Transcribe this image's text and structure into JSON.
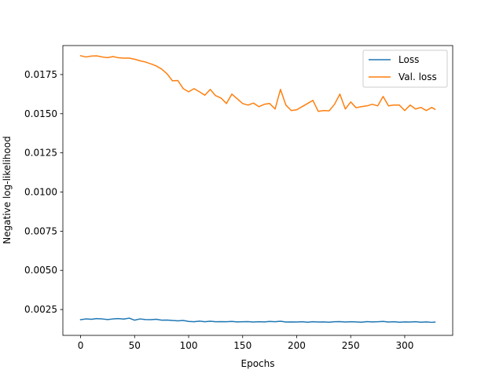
{
  "chart_data": {
    "type": "line",
    "title": "",
    "xlabel": "Epochs",
    "ylabel": "Negative log-likelihood",
    "xlim": [
      -16.4,
      344.4
    ],
    "ylim": [
      0.00085,
      0.01935
    ],
    "xticks": [
      0,
      50,
      100,
      150,
      200,
      250,
      300
    ],
    "yticks": [
      0.0025,
      0.005,
      0.0075,
      0.01,
      0.0125,
      0.015,
      0.0175
    ],
    "grid": false,
    "legend_position": "top-right",
    "series": [
      {
        "name": "Loss",
        "color": "#1f77b4",
        "x": [
          0,
          5,
          10,
          15,
          20,
          25,
          30,
          35,
          40,
          45,
          50,
          55,
          60,
          65,
          70,
          75,
          80,
          85,
          90,
          95,
          100,
          105,
          110,
          115,
          120,
          125,
          130,
          135,
          140,
          145,
          150,
          155,
          160,
          165,
          170,
          175,
          180,
          185,
          190,
          195,
          200,
          205,
          210,
          215,
          220,
          225,
          230,
          235,
          240,
          245,
          250,
          255,
          260,
          265,
          270,
          275,
          280,
          285,
          290,
          295,
          300,
          305,
          310,
          315,
          320,
          325,
          328
        ],
        "y": [
          0.00185,
          0.0019,
          0.00188,
          0.00192,
          0.0019,
          0.00186,
          0.0019,
          0.00192,
          0.00189,
          0.00195,
          0.00182,
          0.0019,
          0.00186,
          0.00185,
          0.00188,
          0.00182,
          0.00183,
          0.0018,
          0.00178,
          0.0018,
          0.00174,
          0.00172,
          0.00176,
          0.00172,
          0.00175,
          0.00172,
          0.00173,
          0.00172,
          0.00174,
          0.00171,
          0.00172,
          0.00173,
          0.0017,
          0.00172,
          0.00171,
          0.00174,
          0.00172,
          0.00175,
          0.0017,
          0.00171,
          0.0017,
          0.00172,
          0.00169,
          0.00172,
          0.0017,
          0.00171,
          0.00169,
          0.00172,
          0.00173,
          0.0017,
          0.00172,
          0.00171,
          0.00169,
          0.00173,
          0.00171,
          0.00172,
          0.00174,
          0.0017,
          0.00172,
          0.00169,
          0.00171,
          0.0017,
          0.00172,
          0.00169,
          0.00171,
          0.00168,
          0.0017
        ]
      },
      {
        "name": "Val. loss",
        "color": "#ff7f0e",
        "x": [
          0,
          5,
          10,
          15,
          20,
          25,
          30,
          35,
          40,
          45,
          50,
          55,
          60,
          65,
          70,
          75,
          80,
          85,
          90,
          95,
          100,
          105,
          110,
          115,
          120,
          125,
          130,
          135,
          140,
          145,
          150,
          155,
          160,
          165,
          170,
          175,
          180,
          185,
          190,
          195,
          200,
          205,
          210,
          215,
          220,
          225,
          230,
          235,
          240,
          245,
          250,
          255,
          260,
          265,
          270,
          275,
          280,
          285,
          290,
          295,
          300,
          305,
          310,
          315,
          320,
          325,
          328
        ],
        "y": [
          0.0187,
          0.01862,
          0.01868,
          0.01869,
          0.01862,
          0.01858,
          0.01865,
          0.01857,
          0.01855,
          0.01855,
          0.01848,
          0.01838,
          0.0183,
          0.01818,
          0.01805,
          0.01785,
          0.01755,
          0.0171,
          0.01712,
          0.0166,
          0.0164,
          0.0166,
          0.0164,
          0.01618,
          0.01655,
          0.01615,
          0.016,
          0.01565,
          0.01625,
          0.01595,
          0.01565,
          0.01555,
          0.01568,
          0.01545,
          0.0156,
          0.01565,
          0.0153,
          0.01655,
          0.01555,
          0.0152,
          0.01525,
          0.01545,
          0.01565,
          0.01585,
          0.01515,
          0.0152,
          0.01518,
          0.0156,
          0.01625,
          0.0153,
          0.01575,
          0.01538,
          0.01545,
          0.0155,
          0.0156,
          0.0155,
          0.0161,
          0.0155,
          0.01555,
          0.01555,
          0.0152,
          0.01555,
          0.0153,
          0.0154,
          0.0152,
          0.0154,
          0.01528
        ]
      }
    ]
  }
}
